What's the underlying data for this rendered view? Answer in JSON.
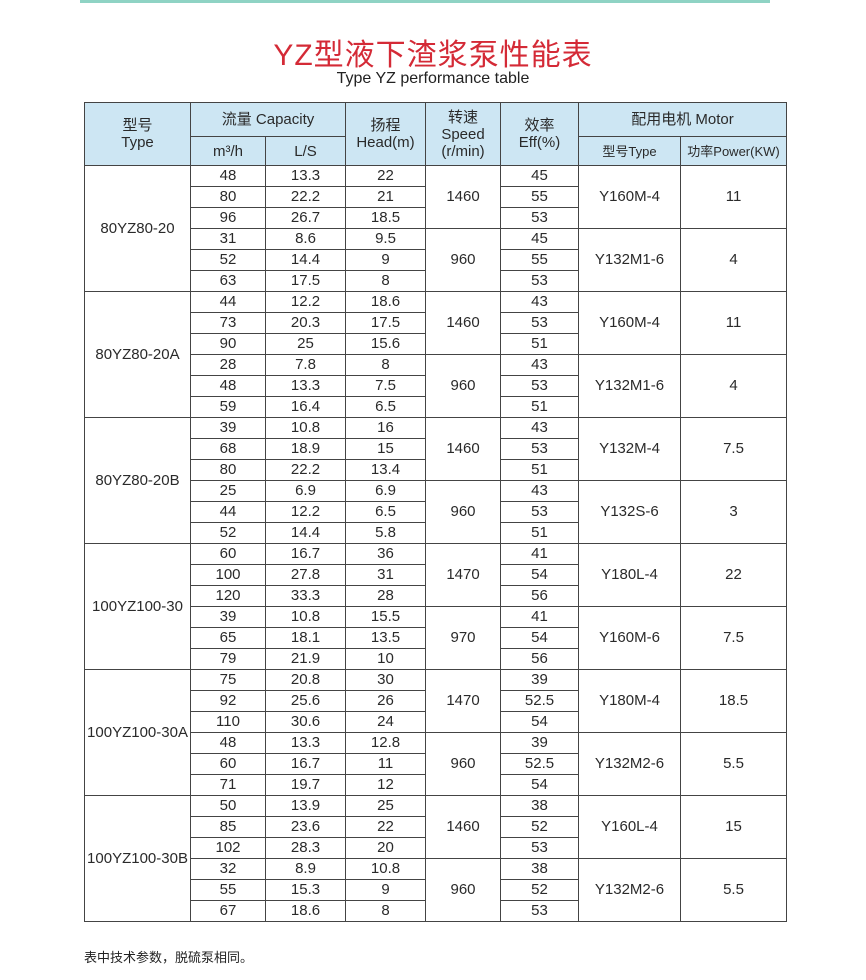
{
  "title": "YZ型液下渣浆泵性能表",
  "subtitle": "Type YZ performance table",
  "header": {
    "type": "型号\nType",
    "capacity": "流量 Capacity",
    "m3h": "m³/h",
    "ls": "L/S",
    "head": "扬程\nHead(m)",
    "speed": "转速\nSpeed\n(r/min)",
    "eff": "效率\nEff(%)",
    "motor": "配用电机 Motor",
    "motor_type": "型号Type",
    "motor_power": "功率Power(KW)"
  },
  "groups": [
    {
      "model": "80YZ80-20",
      "subs": [
        {
          "speed": "1460",
          "motor": "Y160M-4",
          "power": "11",
          "rows": [
            [
              "48",
              "13.3",
              "22",
              "45"
            ],
            [
              "80",
              "22.2",
              "21",
              "55"
            ],
            [
              "96",
              "26.7",
              "18.5",
              "53"
            ]
          ]
        },
        {
          "speed": "960",
          "motor": "Y132M1-6",
          "power": "4",
          "rows": [
            [
              "31",
              "8.6",
              "9.5",
              "45"
            ],
            [
              "52",
              "14.4",
              "9",
              "55"
            ],
            [
              "63",
              "17.5",
              "8",
              "53"
            ]
          ]
        }
      ]
    },
    {
      "model": "80YZ80-20A",
      "subs": [
        {
          "speed": "1460",
          "motor": "Y160M-4",
          "power": "11",
          "rows": [
            [
              "44",
              "12.2",
              "18.6",
              "43"
            ],
            [
              "73",
              "20.3",
              "17.5",
              "53"
            ],
            [
              "90",
              "25",
              "15.6",
              "51"
            ]
          ]
        },
        {
          "speed": "960",
          "motor": "Y132M1-6",
          "power": "4",
          "rows": [
            [
              "28",
              "7.8",
              "8",
              "43"
            ],
            [
              "48",
              "13.3",
              "7.5",
              "53"
            ],
            [
              "59",
              "16.4",
              "6.5",
              "51"
            ]
          ]
        }
      ]
    },
    {
      "model": "80YZ80-20B",
      "subs": [
        {
          "speed": "1460",
          "motor": "Y132M-4",
          "power": "7.5",
          "rows": [
            [
              "39",
              "10.8",
              "16",
              "43"
            ],
            [
              "68",
              "18.9",
              "15",
              "53"
            ],
            [
              "80",
              "22.2",
              "13.4",
              "51"
            ]
          ]
        },
        {
          "speed": "960",
          "motor": "Y132S-6",
          "power": "3",
          "rows": [
            [
              "25",
              "6.9",
              "6.9",
              "43"
            ],
            [
              "44",
              "12.2",
              "6.5",
              "53"
            ],
            [
              "52",
              "14.4",
              "5.8",
              "51"
            ]
          ]
        }
      ]
    },
    {
      "model": "100YZ100-30",
      "subs": [
        {
          "speed": "1470",
          "motor": "Y180L-4",
          "power": "22",
          "rows": [
            [
              "60",
              "16.7",
              "36",
              "41"
            ],
            [
              "100",
              "27.8",
              "31",
              "54"
            ],
            [
              "120",
              "33.3",
              "28",
              "56"
            ]
          ]
        },
        {
          "speed": "970",
          "motor": "Y160M-6",
          "power": "7.5",
          "rows": [
            [
              "39",
              "10.8",
              "15.5",
              "41"
            ],
            [
              "65",
              "18.1",
              "13.5",
              "54"
            ],
            [
              "79",
              "21.9",
              "10",
              "56"
            ]
          ]
        }
      ]
    },
    {
      "model": "100YZ100-30A",
      "subs": [
        {
          "speed": "1470",
          "motor": "Y180M-4",
          "power": "18.5",
          "rows": [
            [
              "75",
              "20.8",
              "30",
              "39"
            ],
            [
              "92",
              "25.6",
              "26",
              "52.5"
            ],
            [
              "110",
              "30.6",
              "24",
              "54"
            ]
          ]
        },
        {
          "speed": "960",
          "motor": "Y132M2-6",
          "power": "5.5",
          "rows": [
            [
              "48",
              "13.3",
              "12.8",
              "39"
            ],
            [
              "60",
              "16.7",
              "11",
              "52.5"
            ],
            [
              "71",
              "19.7",
              "12",
              "54"
            ]
          ]
        }
      ]
    },
    {
      "model": "100YZ100-30B",
      "subs": [
        {
          "speed": "1460",
          "motor": "Y160L-4",
          "power": "15",
          "rows": [
            [
              "50",
              "13.9",
              "25",
              "38"
            ],
            [
              "85",
              "23.6",
              "22",
              "52"
            ],
            [
              "102",
              "28.3",
              "20",
              "53"
            ]
          ]
        },
        {
          "speed": "960",
          "motor": "Y132M2-6",
          "power": "5.5",
          "rows": [
            [
              "32",
              "8.9",
              "10.8",
              "38"
            ],
            [
              "55",
              "15.3",
              "9",
              "52"
            ],
            [
              "67",
              "18.6",
              "8",
              "53"
            ]
          ]
        }
      ]
    }
  ],
  "note": "表中技术参数，脱硫泵相同。"
}
